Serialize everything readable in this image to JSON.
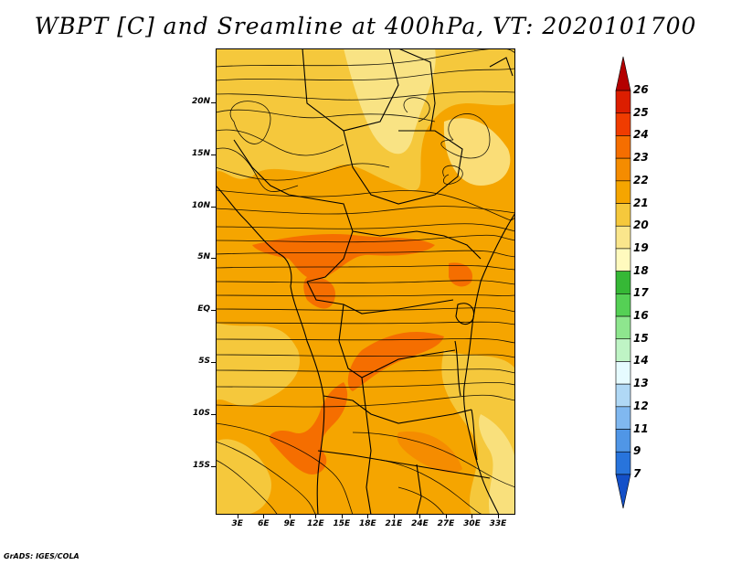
{
  "title": "WBPT [C] and Sreamline at 400hPa, VT: 2020101700",
  "footer": "GrADS: IGES/COLA",
  "map": {
    "variable": "Wet-bulb potential temperature",
    "units": "C",
    "level": "400hPa",
    "valid_time": "2020101700",
    "lat_labels": [
      "20N",
      "15N",
      "10N",
      "5N",
      "EQ",
      "5S",
      "10S",
      "15S"
    ],
    "lat_values": [
      20,
      15,
      10,
      5,
      0,
      -5,
      -10,
      -15
    ],
    "lon_labels": [
      "3E",
      "6E",
      "9E",
      "12E",
      "15E",
      "18E",
      "21E",
      "24E",
      "27E",
      "30E",
      "33E"
    ],
    "lon_values": [
      3,
      6,
      9,
      12,
      15,
      18,
      21,
      24,
      27,
      30,
      33
    ],
    "lat_range": [
      -19.7,
      25.2
    ],
    "lon_range": [
      0.5,
      35
    ]
  },
  "colorbar": {
    "labels": [
      "26",
      "25",
      "24",
      "23",
      "22",
      "21",
      "20",
      "19",
      "18",
      "17",
      "16",
      "15",
      "14",
      "13",
      "12",
      "11",
      "9",
      "7"
    ],
    "colors": [
      "#b40000",
      "#dc1e00",
      "#f03c00",
      "#f56e00",
      "#f58c00",
      "#f5a500",
      "#f5c83c",
      "#fae68c",
      "#fffabe",
      "#36b836",
      "#55d055",
      "#8ee68e",
      "#bff4c5",
      "#e6fbff",
      "#b0d8f5",
      "#80b8f0",
      "#5096e6",
      "#2874dc",
      "#1450c8"
    ]
  }
}
